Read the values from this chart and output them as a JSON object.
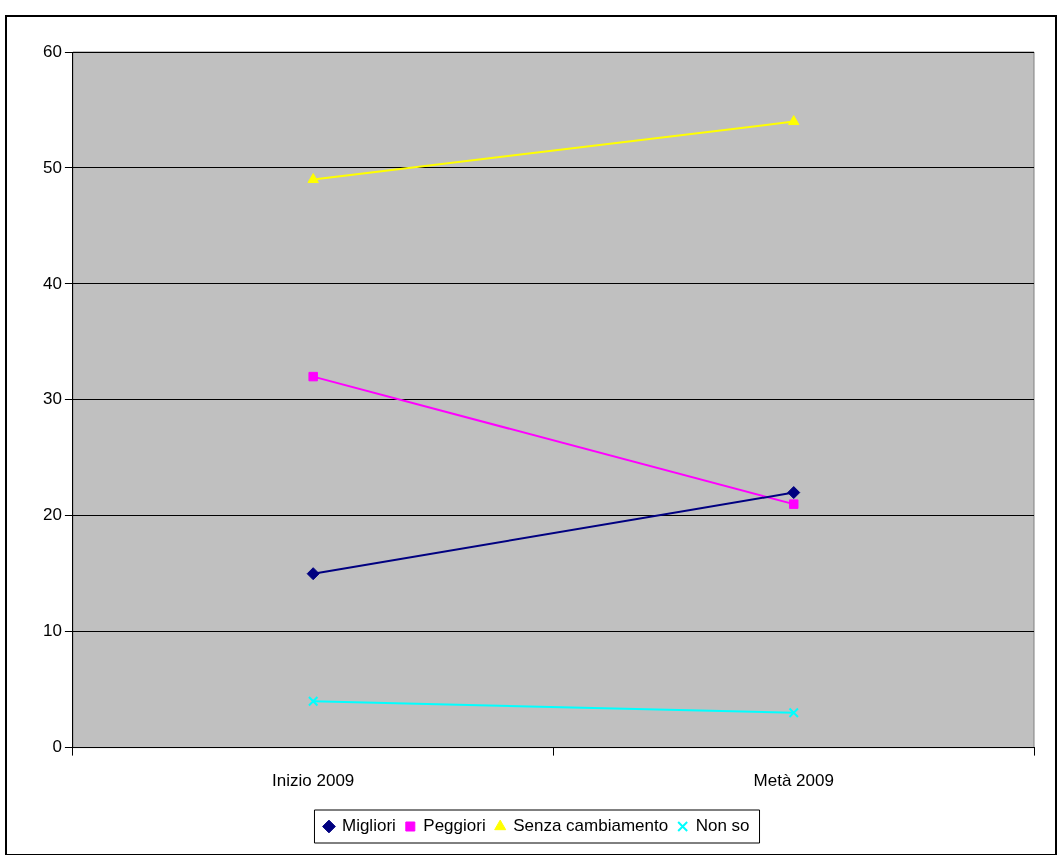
{
  "chart_data": {
    "type": "line",
    "categories": [
      "Inizio 2009",
      "Metà 2009"
    ],
    "series": [
      {
        "name": "Migliori",
        "color": "#000080",
        "marker": "diamond",
        "values": [
          15,
          22
        ]
      },
      {
        "name": "Peggiori",
        "color": "#ff00ff",
        "marker": "square",
        "values": [
          32,
          21
        ]
      },
      {
        "name": "Senza cambiamento",
        "color": "#ffff00",
        "marker": "triangle",
        "values": [
          49,
          54
        ]
      },
      {
        "name": "Non so",
        "color": "#00ffff",
        "marker": "cross",
        "values": [
          4,
          3
        ]
      }
    ],
    "ylim": [
      0,
      60
    ],
    "yticks": [
      0,
      10,
      20,
      30,
      40,
      50,
      60
    ],
    "grid": "y",
    "legend": "bottom",
    "line_style": "solid"
  }
}
